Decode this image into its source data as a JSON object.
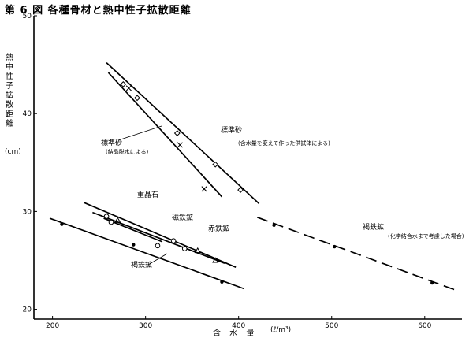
{
  "figure": {
    "title": "第 6 図  各種骨材と熱中性子拡散距離",
    "ylabel": "熱中性子拡散距離",
    "yunit": "(cm)",
    "xlabel": "含 水 量",
    "xunit": "(ℓ/m³)"
  },
  "chart_data": {
    "type": "scatter",
    "title": "第 6 図  各種骨材と熱中性子拡散距離",
    "xlabel": "含水量 (ℓ/m³)",
    "ylabel": "熱中性子拡散距離 (cm)",
    "xlim": [
      180,
      640
    ],
    "ylim": [
      19,
      50
    ],
    "xticks": [
      200,
      300,
      400,
      500,
      600
    ],
    "yticks": [
      20,
      30,
      40,
      50
    ],
    "grid": false,
    "series": [
      {
        "name": "標準砂",
        "note": "(含水量を変えて作った供試体による)",
        "marker": "diamond",
        "points": [
          [
            276,
            43.0
          ],
          [
            291,
            41.6
          ],
          [
            334,
            38.0
          ],
          [
            375,
            34.8
          ],
          [
            402,
            32.2
          ]
        ],
        "fit": [
          [
            258,
            45.2
          ],
          [
            422,
            30.8
          ]
        ]
      },
      {
        "name": "標準砂",
        "note": "(結晶脱水による)",
        "marker": "cross",
        "points": [
          [
            282,
            42.6
          ],
          [
            337,
            36.8
          ],
          [
            363,
            32.3
          ]
        ],
        "fit": [
          [
            260,
            44.2
          ],
          [
            382,
            31.5
          ]
        ]
      },
      {
        "name": "重晶石",
        "marker": "triangle",
        "points": [
          [
            270,
            29.1
          ],
          [
            356,
            26.0
          ],
          [
            375,
            25.0
          ]
        ],
        "fit": [
          [
            234,
            30.9
          ],
          [
            397,
            24.3
          ]
        ]
      },
      {
        "name": "赤鉄鉱",
        "marker": "circle",
        "points": [
          [
            258,
            29.5
          ],
          [
            330,
            27.0
          ],
          [
            342,
            26.2
          ]
        ],
        "fit": [
          [
            243,
            29.9
          ],
          [
            385,
            24.7
          ]
        ]
      },
      {
        "name": "磁鉄鉱",
        "marker": "circle",
        "points": [
          [
            263,
            28.9
          ],
          [
            313,
            26.5
          ]
        ],
        "fit": [
          [
            255,
            29.3
          ],
          [
            318,
            26.9
          ]
        ]
      },
      {
        "name": "褐鉄鉱",
        "marker": "dot",
        "points": [
          [
            210,
            28.7
          ],
          [
            287,
            26.6
          ],
          [
            382,
            22.8
          ]
        ],
        "fit": [
          [
            197,
            29.3
          ],
          [
            406,
            22.1
          ]
        ]
      },
      {
        "name": "褐鉄鉱",
        "note": "(化学結合水まで考慮した場合)",
        "marker": "dot",
        "dashed": true,
        "points": [
          [
            438,
            28.6
          ],
          [
            503,
            26.4
          ],
          [
            608,
            22.7
          ]
        ],
        "fit": [
          [
            420,
            29.4
          ],
          [
            635,
            21.9
          ]
        ]
      }
    ],
    "annotations": [
      {
        "text": "標準砂",
        "sub": "(含水量を変えて作った供試体による)"
      },
      {
        "text": "標準砂",
        "sub": "(結晶脱水による)"
      },
      {
        "text": "重晶石",
        "sub": ""
      },
      {
        "text": "磁鉄鉱",
        "sub": ""
      },
      {
        "text": "赤鉄鉱",
        "sub": ""
      },
      {
        "text": "褐鉄鉱",
        "sub": ""
      },
      {
        "text": "褐鉄鉱",
        "sub": "(化学結合水まで考慮した場合)"
      }
    ]
  }
}
